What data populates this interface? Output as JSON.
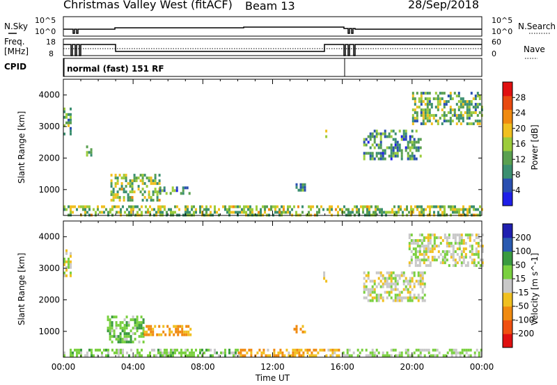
{
  "header": {
    "station": "Christmas Valley West (fitACF)",
    "beam": "Beam 13",
    "date": "28/Sep/2018"
  },
  "status_panel": {
    "nsky_label": "N.Sky",
    "nsearch_label": "N.Search",
    "noise_ticks": [
      "10^5",
      "10^0"
    ],
    "noise_ticks_right": [
      "10^5",
      "10^0"
    ],
    "freq_label": "Freq.",
    "freq_unit": "[MHz]",
    "freq_ticks": [
      "18",
      "8"
    ],
    "nave_label": "Nave",
    "nave_ticks": [
      "60",
      "0"
    ],
    "cpid_label": "CPID",
    "cpid_value": "normal (fast) 151 RF"
  },
  "colors": {
    "power_scale": [
      "#1f1fe8",
      "#2a4fb0",
      "#3b8f70",
      "#5aa050",
      "#9ccc3c",
      "#f0c020",
      "#f08a10",
      "#e84a10",
      "#e01010"
    ],
    "velocity_scale": [
      "#e01010",
      "#f05010",
      "#f08a10",
      "#f0c020",
      "#c8c8c8",
      "#7ad040",
      "#3a9a40",
      "#2a5ab0",
      "#1f1fb0"
    ]
  },
  "chart_data": [
    {
      "type": "heatmap",
      "title": "",
      "xlabel": "",
      "ylabel": "Slant Range [km]",
      "ylim": [
        180,
        4500
      ],
      "xlim_hours": [
        0,
        24
      ],
      "yticks": [
        1000,
        2000,
        3000,
        4000
      ],
      "colorbar": {
        "label": "Power [dB]",
        "range": [
          0,
          30
        ],
        "ticks": [
          "4",
          "8",
          "12",
          "16",
          "20",
          "24",
          "28"
        ]
      },
      "echo_regions": [
        {
          "t": [
            0.0,
            0.4
          ],
          "r": [
            2800,
            3600
          ],
          "level": 0.35
        },
        {
          "t": [
            1.3,
            1.6
          ],
          "r": [
            2100,
            2400
          ],
          "level": 0.3
        },
        {
          "t": [
            2.7,
            5.5
          ],
          "r": [
            700,
            1500
          ],
          "level": 0.45
        },
        {
          "t": [
            5.5,
            7.2
          ],
          "r": [
            900,
            1100
          ],
          "level": 0.3
        },
        {
          "t": [
            13.2,
            13.8
          ],
          "r": [
            1000,
            1200
          ],
          "level": 0.3
        },
        {
          "t": [
            14.9,
            15.1
          ],
          "r": [
            2600,
            2900
          ],
          "level": 0.4
        },
        {
          "t": [
            17.2,
            20.5
          ],
          "r": [
            2000,
            2900
          ],
          "level": 0.3
        },
        {
          "t": [
            20.0,
            24.0
          ],
          "r": [
            3100,
            4100
          ],
          "level": 0.4
        },
        {
          "t": [
            0.0,
            24.0
          ],
          "r": [
            190,
            500
          ],
          "level": 0.45
        }
      ]
    },
    {
      "type": "heatmap",
      "title": "",
      "xlabel": "Time UT",
      "ylabel": "Slant Range [km]",
      "ylim": [
        180,
        4500
      ],
      "xlim_hours": [
        0,
        24
      ],
      "yticks": [
        1000,
        2000,
        3000,
        4000
      ],
      "xticks": [
        "00:00",
        "04:00",
        "08:00",
        "12:00",
        "16:00",
        "20:00",
        "00:00"
      ],
      "colorbar": {
        "label": "Velocity [m s^-1]",
        "range": [
          -250,
          250
        ],
        "ticks": [
          "-200",
          "-100",
          "-50",
          "-15",
          "15",
          "50",
          "100",
          "200"
        ]
      },
      "echo_regions": [
        {
          "t": [
            0.0,
            0.4
          ],
          "r": [
            2800,
            3600
          ],
          "vel": 0
        },
        {
          "t": [
            2.5,
            4.6
          ],
          "r": [
            700,
            1500
          ],
          "vel": 40
        },
        {
          "t": [
            4.6,
            7.3
          ],
          "r": [
            900,
            1200
          ],
          "vel": -60
        },
        {
          "t": [
            13.2,
            13.9
          ],
          "r": [
            950,
            1200
          ],
          "vel": -60
        },
        {
          "t": [
            14.9,
            15.1
          ],
          "r": [
            2550,
            2900
          ],
          "vel": 0
        },
        {
          "t": [
            17.2,
            20.7
          ],
          "r": [
            2000,
            2900
          ],
          "vel": 0
        },
        {
          "t": [
            19.8,
            24.0
          ],
          "r": [
            3100,
            4100
          ],
          "vel": 0
        },
        {
          "t": [
            0.0,
            10.0
          ],
          "r": [
            190,
            450
          ],
          "vel": 30
        },
        {
          "t": [
            10.0,
            16.0
          ],
          "r": [
            190,
            450
          ],
          "vel": -40
        },
        {
          "t": [
            16.0,
            24.0
          ],
          "r": [
            190,
            450
          ],
          "vel": 20
        }
      ]
    }
  ]
}
